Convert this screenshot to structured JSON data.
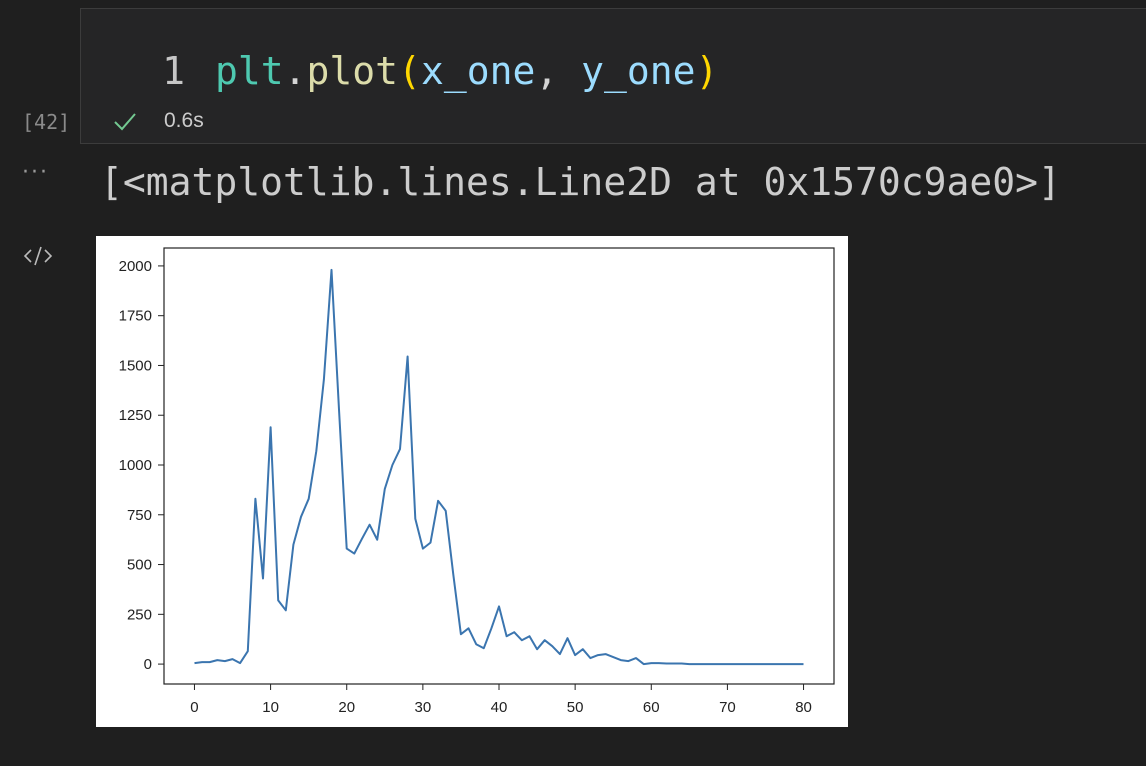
{
  "cell": {
    "line_number": "1",
    "code": {
      "module": "plt",
      "dot": ".",
      "func": "plot",
      "open_paren": "(",
      "arg1": "x_one",
      "comma": ", ",
      "arg2": "y_one",
      "close_paren": ")"
    },
    "execution_count": "[42]",
    "status_icon": "check-icon",
    "execution_time": "0.6s"
  },
  "output": {
    "ellipsis": "···",
    "text": "[<matplotlib.lines.Line2D at 0x1570c9ae0>]",
    "toggle_icon": "code-icon"
  },
  "colors": {
    "line": "#3b75af",
    "check": "#73c991"
  },
  "chart_data": {
    "type": "line",
    "title": "",
    "xlabel": "",
    "ylabel": "",
    "xlim": [
      -4,
      84
    ],
    "ylim": [
      -100,
      2090
    ],
    "xticks": [
      0,
      10,
      20,
      30,
      40,
      50,
      60,
      70,
      80
    ],
    "yticks": [
      0,
      250,
      500,
      750,
      1000,
      1250,
      1500,
      1750,
      2000
    ],
    "grid": false,
    "x": [
      0,
      1,
      2,
      3,
      4,
      5,
      6,
      7,
      8,
      9,
      10,
      11,
      12,
      13,
      14,
      15,
      16,
      17,
      18,
      19,
      20,
      21,
      22,
      23,
      24,
      25,
      26,
      27,
      28,
      29,
      30,
      31,
      32,
      33,
      34,
      35,
      36,
      37,
      38,
      39,
      40,
      41,
      42,
      43,
      44,
      45,
      46,
      47,
      48,
      49,
      50,
      51,
      52,
      53,
      54,
      55,
      56,
      57,
      58,
      59,
      60,
      61,
      62,
      63,
      64,
      65,
      66,
      67,
      68,
      69,
      70,
      71,
      72,
      73,
      74,
      75,
      76,
      77,
      78,
      79,
      80
    ],
    "series": [
      {
        "values": [
          5,
          10,
          10,
          20,
          15,
          25,
          5,
          65,
          830,
          430,
          1190,
          320,
          270,
          600,
          740,
          830,
          1070,
          1430,
          1980,
          1270,
          580,
          555,
          630,
          700,
          625,
          880,
          1000,
          1080,
          1545,
          730,
          580,
          610,
          820,
          770,
          450,
          150,
          180,
          100,
          80,
          180,
          290,
          140,
          160,
          120,
          140,
          75,
          120,
          90,
          50,
          130,
          45,
          75,
          30,
          45,
          50,
          35,
          20,
          15,
          30,
          0,
          5,
          5,
          3,
          3,
          3,
          0,
          0,
          0,
          0,
          0,
          0,
          0,
          0,
          0,
          0,
          0,
          0,
          0,
          0,
          0,
          0
        ]
      }
    ]
  }
}
